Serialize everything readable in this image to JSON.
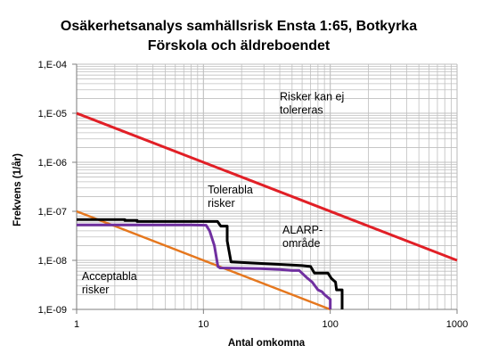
{
  "chart_data": {
    "type": "line",
    "title_line1": "Osäkerhetsanalys samhällsrisk Ensta 1:65, Botkyrka",
    "title_line2": "Förskola och äldreboendet",
    "xlabel": "Antal omkomna",
    "ylabel": "Frekvens (1/år)",
    "x_scale": "log",
    "y_scale": "log",
    "xlim": [
      1,
      1000
    ],
    "ylim": [
      1e-09,
      0.0001
    ],
    "grid": true,
    "x_ticks": [
      {
        "value": 1,
        "label": "1"
      },
      {
        "value": 10,
        "label": "10"
      },
      {
        "value": 100,
        "label": "100"
      },
      {
        "value": 1000,
        "label": "1000"
      }
    ],
    "y_ticks": [
      {
        "value": 1e-09,
        "label": "1,E-09"
      },
      {
        "value": 1e-08,
        "label": "1,E-08"
      },
      {
        "value": 1e-07,
        "label": "1,E-07"
      },
      {
        "value": 1e-06,
        "label": "1,E-06"
      },
      {
        "value": 1e-05,
        "label": "1,E-05"
      },
      {
        "value": 0.0001,
        "label": "1,E-04"
      }
    ],
    "colors": {
      "upper_limit": "#e11f26",
      "lower_limit": "#e5771e",
      "risk_curve_black": "#000000",
      "risk_curve_purple": "#7030a0",
      "grid": "#bfbfbf",
      "axis": "#7f7f7f"
    },
    "series": [
      {
        "key": "upper_limit",
        "color_key": "upper_limit",
        "width": 3,
        "points": [
          [
            1,
            1e-05
          ],
          [
            1000,
            1e-08
          ]
        ]
      },
      {
        "key": "lower_limit",
        "color_key": "lower_limit",
        "width": 2.5,
        "points": [
          [
            1,
            1e-07
          ],
          [
            100,
            1e-09
          ]
        ]
      },
      {
        "key": "risk_curve_black",
        "color_key": "risk_curve_black",
        "width": 3,
        "points": [
          [
            1,
            6.8e-08
          ],
          [
            2.4,
            6.8e-08
          ],
          [
            2.4,
            6.5e-08
          ],
          [
            3.0,
            6.5e-08
          ],
          [
            3.0,
            6.2e-08
          ],
          [
            12.9,
            6.2e-08
          ],
          [
            13.7,
            5e-08
          ],
          [
            15.4,
            5e-08
          ],
          [
            15.4,
            2.5e-08
          ],
          [
            16.5,
            9.3e-09
          ],
          [
            50,
            8e-09
          ],
          [
            60,
            7.8e-09
          ],
          [
            70,
            7.5e-09
          ],
          [
            75,
            5.5e-09
          ],
          [
            96,
            5.5e-09
          ],
          [
            102,
            4.3e-09
          ],
          [
            110,
            3.6e-09
          ],
          [
            112,
            2.5e-09
          ],
          [
            124,
            2.5e-09
          ],
          [
            124,
            1e-09
          ]
        ]
      },
      {
        "key": "risk_curve_purple",
        "color_key": "risk_curve_purple",
        "width": 3,
        "points": [
          [
            1,
            5.3e-08
          ],
          [
            8.0,
            5.3e-08
          ],
          [
            10.5,
            5.2e-08
          ],
          [
            11.2,
            4e-08
          ],
          [
            12.2,
            2e-08
          ],
          [
            13.0,
            7.5e-09
          ],
          [
            13.5,
            7e-09
          ],
          [
            28,
            6.8e-09
          ],
          [
            40,
            6.5e-09
          ],
          [
            50,
            6.2e-09
          ],
          [
            57,
            6.2e-09
          ],
          [
            65,
            4.5e-09
          ],
          [
            72,
            3.6e-09
          ],
          [
            80,
            2.5e-09
          ],
          [
            86,
            2.3e-09
          ],
          [
            90,
            2e-09
          ],
          [
            100,
            1.6e-09
          ],
          [
            100,
            1e-09
          ]
        ]
      }
    ],
    "annotations": [
      {
        "lines": [
          "Risker kan ej",
          "tolereras"
        ],
        "x": 40,
        "y": 1.85e-05
      },
      {
        "lines": [
          "Tolerabla",
          "risker"
        ],
        "x": 10.8,
        "y": 2.3e-07
      },
      {
        "lines": [
          "ALARP-",
          "område"
        ],
        "x": 42,
        "y": 3.5e-08
      },
      {
        "lines": [
          "Acceptabla",
          "risker"
        ],
        "x": 1.1,
        "y": 4e-09
      }
    ]
  }
}
